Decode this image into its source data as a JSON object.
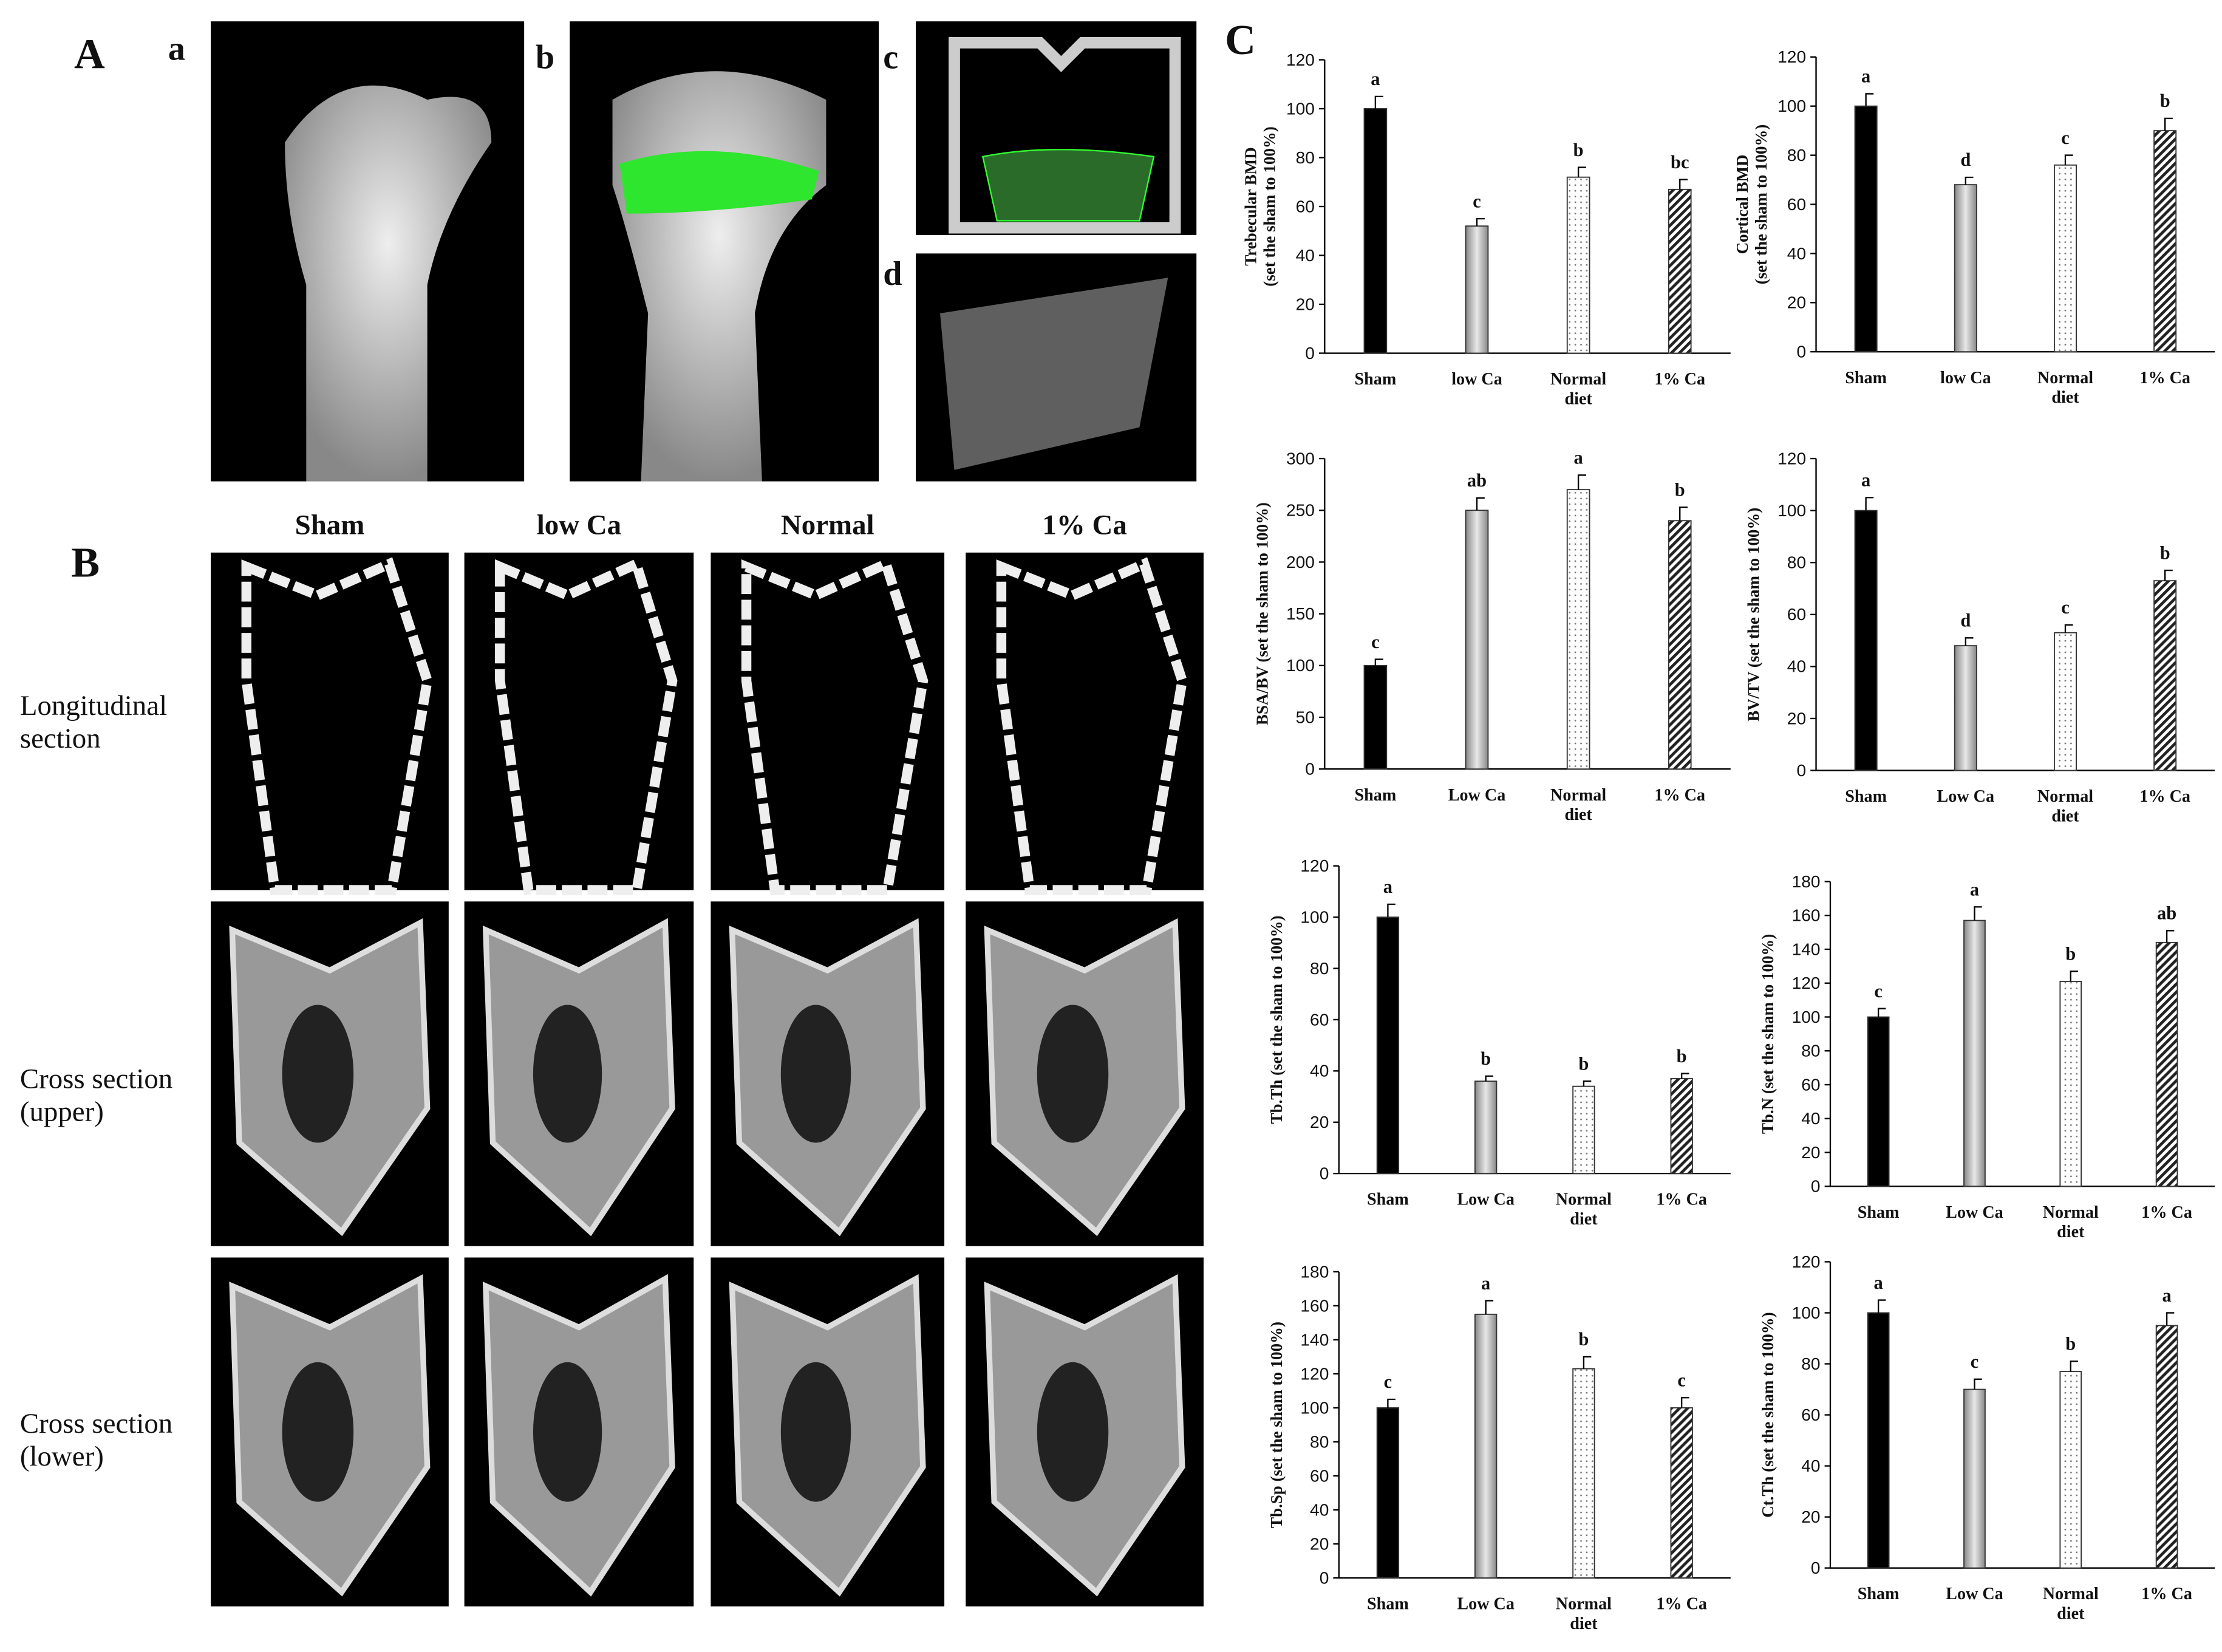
{
  "panels": {
    "A": "A",
    "a": "a",
    "b": "b",
    "c": "c",
    "d": "d",
    "B": "B",
    "C": "C",
    "columns": [
      "Sham",
      "low Ca",
      "Normal",
      "1% Ca"
    ],
    "rows": [
      "Longitudinal\nsection",
      "Cross section\n(upper)",
      "Cross section\n(lower)"
    ]
  },
  "chart_data": [
    {
      "type": "bar",
      "ylabel": "Trebecular BMD\n(set the sham to 100%)",
      "categories": [
        "Sham",
        "low Ca",
        "Normal\ndiet",
        "1% Ca"
      ],
      "values": [
        100,
        52,
        72,
        67
      ],
      "errors": [
        5,
        3,
        4,
        4
      ],
      "letters": [
        "a",
        "c",
        "b",
        "bc"
      ],
      "bar_styles": [
        "black",
        "gray",
        "dotted",
        "hatched"
      ],
      "ylim": [
        0,
        120
      ],
      "yticks": [
        0,
        20,
        40,
        60,
        80,
        100,
        120
      ]
    },
    {
      "type": "bar",
      "ylabel": "Cortical BMD\n(set the sham to 100%)",
      "categories": [
        "Sham",
        "low Ca",
        "Normal\ndiet",
        "1% Ca"
      ],
      "values": [
        100,
        68,
        76,
        90
      ],
      "errors": [
        5,
        3,
        4,
        5
      ],
      "letters": [
        "a",
        "d",
        "c",
        "b"
      ],
      "bar_styles": [
        "black",
        "gray",
        "dotted",
        "hatched"
      ],
      "ylim": [
        0,
        120
      ],
      "yticks": [
        0,
        20,
        40,
        60,
        80,
        100,
        120
      ]
    },
    {
      "type": "bar",
      "ylabel": "BSA/BV (set the sham to 100%)",
      "categories": [
        "Sham",
        "Low Ca",
        "Normal\ndiet",
        "1% Ca"
      ],
      "values": [
        100,
        250,
        270,
        240
      ],
      "errors": [
        6,
        12,
        14,
        13
      ],
      "letters": [
        "c",
        "ab",
        "a",
        "b"
      ],
      "bar_styles": [
        "black",
        "gray",
        "dotted",
        "hatched"
      ],
      "ylim": [
        0,
        300
      ],
      "yticks": [
        0,
        50,
        100,
        150,
        200,
        250,
        300
      ]
    },
    {
      "type": "bar",
      "ylabel": "BV/TV (set the sham to 100%)",
      "categories": [
        "Sham",
        "Low Ca",
        "Normal\ndiet",
        "1% Ca"
      ],
      "values": [
        100,
        48,
        53,
        73
      ],
      "errors": [
        5,
        3,
        3,
        4
      ],
      "letters": [
        "a",
        "d",
        "c",
        "b"
      ],
      "bar_styles": [
        "black",
        "gray",
        "dotted",
        "hatched"
      ],
      "ylim": [
        0,
        120
      ],
      "yticks": [
        0,
        20,
        40,
        60,
        80,
        100,
        120
      ]
    },
    {
      "type": "bar",
      "ylabel": "Tb.Th (set the sham to 100%)",
      "categories": [
        "Sham",
        "Low Ca",
        "Normal\ndiet",
        "1% Ca"
      ],
      "values": [
        100,
        36,
        34,
        37
      ],
      "errors": [
        5,
        2,
        2,
        2
      ],
      "letters": [
        "a",
        "b",
        "b",
        "b"
      ],
      "bar_styles": [
        "black",
        "gray",
        "dotted",
        "hatched"
      ],
      "ylim": [
        0,
        120
      ],
      "yticks": [
        0,
        20,
        40,
        60,
        80,
        100,
        120
      ]
    },
    {
      "type": "bar",
      "ylabel": "Tb.N (set the sham to 100%)",
      "categories": [
        "Sham",
        "Low Ca",
        "Normal\ndiet",
        "1% Ca"
      ],
      "values": [
        100,
        157,
        121,
        144
      ],
      "errors": [
        5,
        8,
        6,
        7
      ],
      "letters": [
        "c",
        "a",
        "b",
        "ab"
      ],
      "bar_styles": [
        "black",
        "gray",
        "dotted",
        "hatched"
      ],
      "ylim": [
        0,
        180
      ],
      "yticks": [
        0,
        20,
        40,
        60,
        80,
        100,
        120,
        140,
        160,
        180
      ]
    },
    {
      "type": "bar",
      "ylabel": "Tb.Sp (set the sham to 100%)",
      "categories": [
        "Sham",
        "Low Ca",
        "Normal\ndiet",
        "1% Ca"
      ],
      "values": [
        100,
        155,
        123,
        100
      ],
      "errors": [
        5,
        8,
        7,
        6
      ],
      "letters": [
        "c",
        "a",
        "b",
        "c"
      ],
      "bar_styles": [
        "black",
        "gray",
        "dotted",
        "hatched"
      ],
      "ylim": [
        0,
        180
      ],
      "yticks": [
        0,
        20,
        40,
        60,
        80,
        100,
        120,
        140,
        160,
        180
      ]
    },
    {
      "type": "bar",
      "ylabel": "Ct.Th (set the sham to 100%)",
      "categories": [
        "Sham",
        "Low Ca",
        "Normal\ndiet",
        "1% Ca"
      ],
      "values": [
        100,
        70,
        77,
        95
      ],
      "errors": [
        5,
        4,
        4,
        5
      ],
      "letters": [
        "a",
        "c",
        "b",
        "a"
      ],
      "bar_styles": [
        "black",
        "gray",
        "dotted",
        "hatched"
      ],
      "ylim": [
        0,
        120
      ],
      "yticks": [
        0,
        20,
        40,
        60,
        80,
        100,
        120
      ]
    }
  ]
}
